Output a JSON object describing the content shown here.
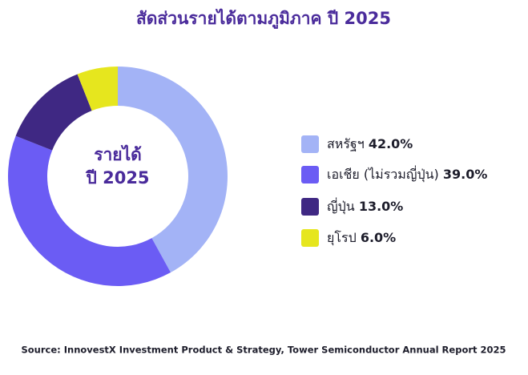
{
  "chart_data": {
    "type": "pie",
    "title": "สัดส่วนรายได้ตามภูมิภาค ปี 2025",
    "center_text": [
      "รายได้",
      "ปี 2025"
    ],
    "categories": [
      "สหรัฐฯ",
      "เอเชีย (ไม่รวมญี่ปุ่น)",
      "ญี่ปุ่น",
      "ยุโรป"
    ],
    "values": [
      42.0,
      39.0,
      13.0,
      6.0
    ],
    "value_labels": [
      "42.0%",
      "39.0%",
      "13.0%",
      "6.0%"
    ],
    "colors": [
      "#a3b3f6",
      "#6b5cf4",
      "#3f2883",
      "#e6e61e"
    ],
    "source": "Source: InnovestX Investment Product & Strategy, Tower Semiconductor Annual Report 2025"
  }
}
